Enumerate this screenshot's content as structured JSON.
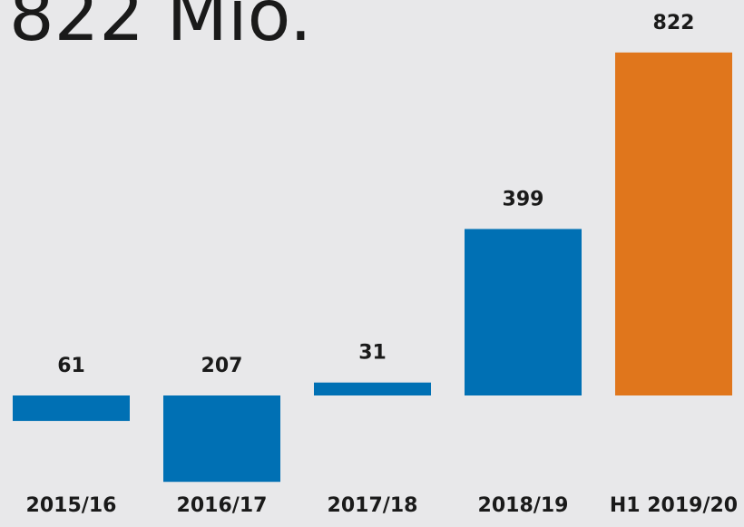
{
  "chart_data": {
    "type": "bar",
    "title": "822 Mio.",
    "categories": [
      "2015/16",
      "2016/17",
      "2017/18",
      "2018/19",
      "H1 2019/20"
    ],
    "values": [
      -61,
      -207,
      31,
      399,
      822
    ],
    "value_labels": [
      "61",
      "207",
      "31",
      "399",
      "822"
    ],
    "colors": [
      "#0070b4",
      "#0070b4",
      "#0070b4",
      "#0070b4",
      "#e0761c"
    ]
  }
}
